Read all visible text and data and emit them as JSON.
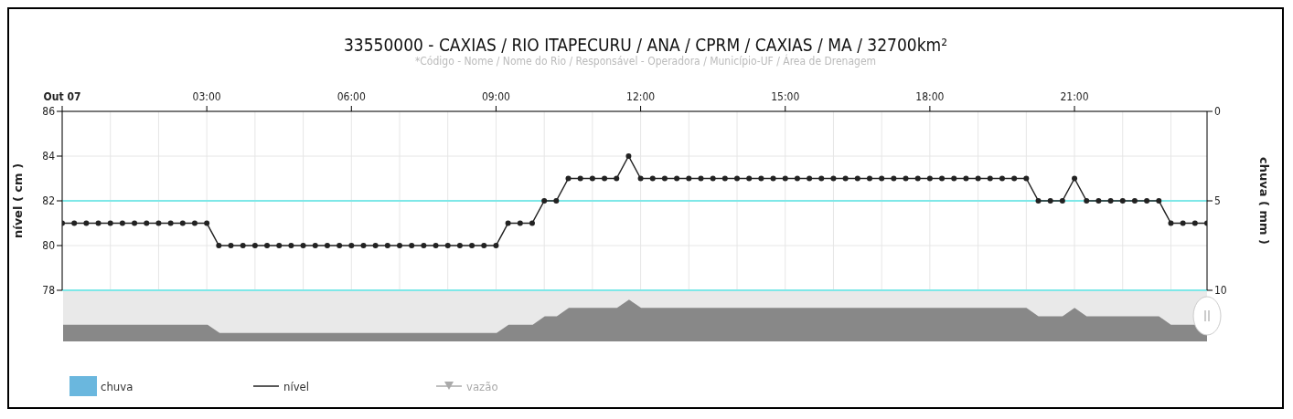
{
  "chart_data": {
    "type": "line",
    "title": "33550000 - CAXIAS / RIO ITAPECURU / ANA / CPRM / CAXIAS / MA / 32700km²",
    "subtitle": "*Código - Nome / Nome do Rio / Responsável - Operadora / Município-UF / Área de Drenagem",
    "ylabel": "nível ( cm )",
    "y2label": "chuva ( mm )",
    "x": [
      0,
      0.25,
      0.5,
      0.75,
      1,
      1.25,
      1.5,
      1.75,
      2,
      2.25,
      2.5,
      2.75,
      3,
      3.25,
      3.5,
      3.75,
      4,
      4.25,
      4.5,
      4.75,
      5,
      5.25,
      5.5,
      5.75,
      6,
      6.25,
      6.5,
      6.75,
      7,
      7.25,
      7.5,
      7.75,
      8,
      8.25,
      8.5,
      8.75,
      9,
      9.25,
      9.5,
      9.75,
      10,
      10.25,
      10.5,
      10.75,
      11,
      11.25,
      11.5,
      11.75,
      12,
      12.25,
      12.5,
      12.75,
      13,
      13.25,
      13.5,
      13.75,
      14,
      14.25,
      14.5,
      14.75,
      15,
      15.25,
      15.5,
      15.75,
      16,
      16.25,
      16.5,
      16.75,
      17,
      17.25,
      17.5,
      17.75,
      18,
      18.25,
      18.5,
      18.75,
      19,
      19.25,
      19.5,
      19.75,
      20,
      20.25,
      20.5,
      20.75,
      21,
      21.25,
      21.5,
      21.75,
      22,
      22.25,
      22.5,
      22.75,
      23,
      23.25,
      23.5,
      23.75
    ],
    "series": [
      {
        "name": "chuva",
        "type": "bar",
        "axis": "y2",
        "color": "#6ab7de",
        "values": [
          0,
          0,
          0,
          0,
          0,
          0,
          0,
          0,
          0,
          0,
          0,
          0,
          0,
          0,
          0,
          0,
          0,
          0,
          0,
          0,
          0,
          0,
          0,
          0,
          0,
          0,
          0,
          0,
          0,
          0,
          0,
          0,
          0,
          0,
          0,
          0,
          0,
          0,
          0,
          0,
          0,
          0,
          0,
          0,
          0,
          0,
          0,
          0,
          0,
          0,
          0,
          0,
          0,
          0,
          0,
          0,
          0,
          0,
          0,
          0,
          0,
          0,
          0,
          0,
          0,
          0,
          0,
          0,
          0,
          0,
          0,
          0,
          0,
          0,
          0,
          0,
          0,
          0,
          0,
          0,
          0,
          0,
          0,
          0,
          0,
          0,
          0,
          0,
          0,
          0,
          0,
          0,
          0,
          0,
          0,
          0
        ]
      },
      {
        "name": "nível",
        "color": "#222222",
        "marker": "circle",
        "values": [
          81,
          81,
          81,
          81,
          81,
          81,
          81,
          81,
          81,
          81,
          81,
          81,
          81,
          80,
          80,
          80,
          80,
          80,
          80,
          80,
          80,
          80,
          80,
          80,
          80,
          80,
          80,
          80,
          80,
          80,
          80,
          80,
          80,
          80,
          80,
          80,
          80,
          81,
          81,
          81,
          82,
          82,
          83,
          83,
          83,
          83,
          83,
          84,
          83,
          83,
          83,
          83,
          83,
          83,
          83,
          83,
          83,
          83,
          83,
          83,
          83,
          83,
          83,
          83,
          83,
          83,
          83,
          83,
          83,
          83,
          83,
          83,
          83,
          83,
          83,
          83,
          83,
          83,
          83,
          83,
          83,
          82,
          82,
          82,
          83,
          82,
          82,
          82,
          82,
          82,
          82,
          82,
          81,
          81,
          81,
          81
        ]
      },
      {
        "name": "vazão",
        "color": "#aaaaaa",
        "marker": "triangle",
        "values": [
          null,
          null,
          null,
          null,
          null,
          null,
          null,
          null,
          null,
          null,
          null,
          null,
          null,
          null,
          null,
          null,
          null,
          null,
          null,
          null,
          null,
          null,
          null,
          null,
          null,
          null,
          null,
          null,
          null,
          null,
          null,
          null,
          null,
          null,
          null,
          null,
          null,
          null,
          null,
          null,
          null,
          null,
          null,
          null,
          null,
          null,
          null,
          null,
          null,
          null,
          null,
          null,
          null,
          null,
          null,
          null,
          null,
          null,
          null,
          null,
          null,
          null,
          null,
          null,
          null,
          null,
          null,
          null,
          null,
          null,
          null,
          null,
          null,
          null,
          null,
          null,
          null,
          null,
          null,
          null,
          null,
          null,
          null,
          null,
          null,
          null,
          null,
          null,
          null,
          null,
          null,
          null,
          null,
          null,
          null,
          null
        ]
      }
    ],
    "xlim": [
      0,
      23.75
    ],
    "xticks": [
      {
        "value": 0,
        "label": "Out 07"
      },
      {
        "value": 3,
        "label": "03:00"
      },
      {
        "value": 6,
        "label": "06:00"
      },
      {
        "value": 9,
        "label": "09:00"
      },
      {
        "value": 12,
        "label": "12:00"
      },
      {
        "value": 15,
        "label": "15:00"
      },
      {
        "value": 18,
        "label": "18:00"
      },
      {
        "value": 21,
        "label": "21:00"
      }
    ],
    "ylim": [
      78,
      86
    ],
    "yticks": [
      78,
      80,
      82,
      84,
      86
    ],
    "y2lim": [
      10,
      0
    ],
    "y2ticks": [
      0,
      5,
      10
    ],
    "ref_lines": [
      {
        "axis": "y",
        "value": 82,
        "color": "#7fe8e8"
      },
      {
        "axis": "y",
        "value": 78,
        "color": "#7fe8e8"
      }
    ],
    "grid": true,
    "legend": "bottom left"
  }
}
